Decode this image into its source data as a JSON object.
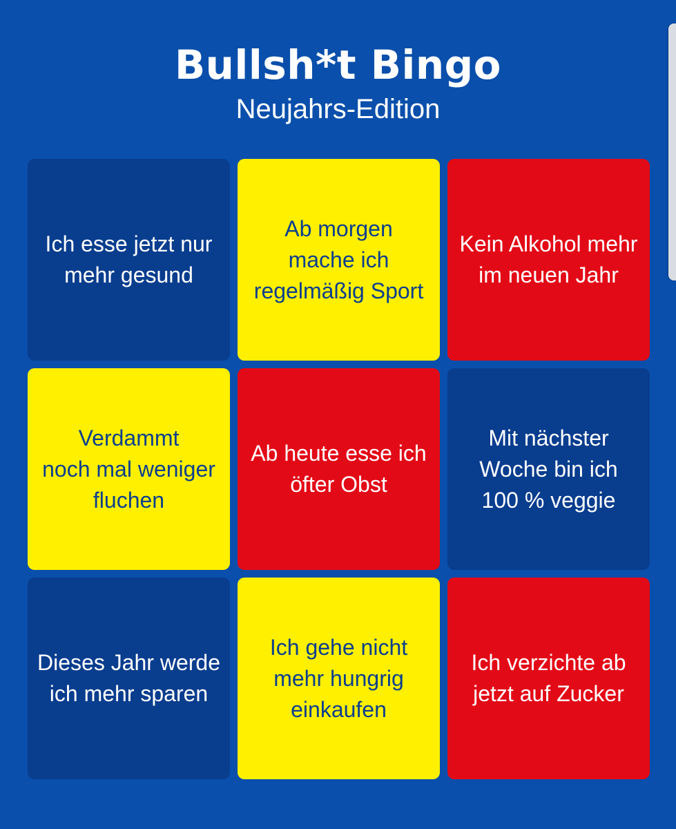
{
  "header": {
    "title": "Bullsh*t Bingo",
    "subtitle": "Neujahrs-Edition"
  },
  "colors": {
    "background": "#0a4fab",
    "navy": "#093d8e",
    "yellow": "#fff000",
    "red": "#e30a17",
    "yellow_text": "#0b3f8f"
  },
  "tiles": [
    {
      "text": "Ich esse jetzt nur\nmehr gesund",
      "color": "navy"
    },
    {
      "text": "Ab morgen\nmache ich\nregelmäßig Sport",
      "color": "yellow"
    },
    {
      "text": "Kein Alkohol mehr\nim neuen Jahr",
      "color": "red"
    },
    {
      "text": "Verdammt\nnoch mal weniger\nfluchen",
      "color": "yellow"
    },
    {
      "text": "Ab heute esse ich\nöfter Obst",
      "color": "red"
    },
    {
      "text": "Mit nächster\nWoche bin ich\n100 % veggie",
      "color": "navy"
    },
    {
      "text": "Dieses Jahr werde\nich mehr sparen",
      "color": "navy"
    },
    {
      "text": "Ich gehe nicht\nmehr hungrig\neinkaufen",
      "color": "yellow"
    },
    {
      "text": "Ich verzichte ab\njetzt auf Zucker",
      "color": "red"
    }
  ]
}
